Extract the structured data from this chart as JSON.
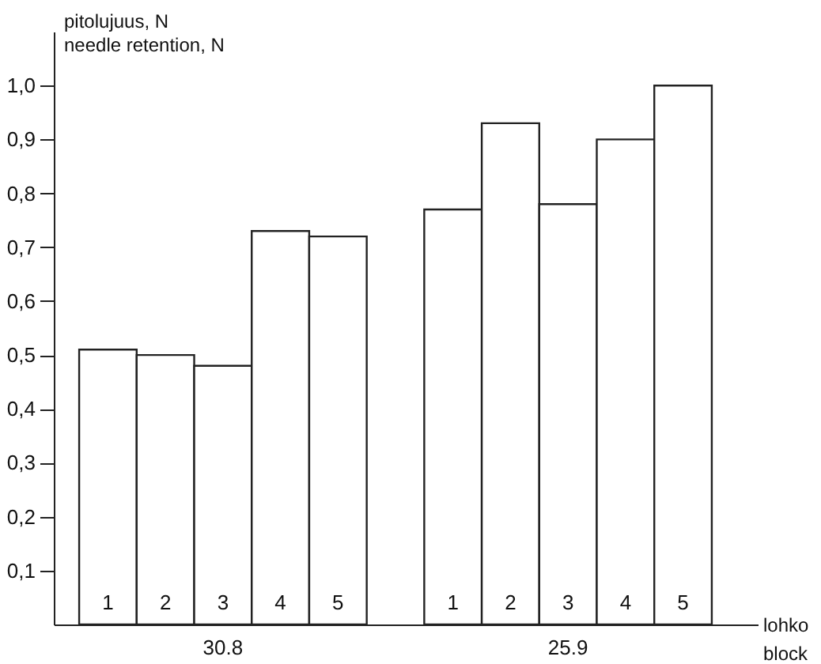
{
  "chart_data": {
    "type": "bar",
    "ylabel": "pitolujuus, N\nneedle retention, N",
    "xlabel": "lohko\nblock",
    "categories": [
      "1",
      "2",
      "3",
      "4",
      "5",
      null,
      "1",
      "2",
      "3",
      "4",
      "5"
    ],
    "series": [
      {
        "name": "30.8",
        "color": "#ffffff",
        "values": [
          0.51,
          0.5,
          0.48,
          0.73,
          0.72,
          null,
          null,
          null,
          null,
          null,
          null
        ]
      },
      {
        "name": "25.9",
        "color": "#ffffff",
        "values": [
          null,
          null,
          null,
          null,
          null,
          null,
          0.77,
          0.93,
          0.78,
          0.9,
          1.0
        ]
      }
    ],
    "ylim": [
      0,
      1.1
    ],
    "yticks": [
      {
        "value": 0.1,
        "label": "0,1"
      },
      {
        "value": 0.2,
        "label": "0,2"
      },
      {
        "value": 0.3,
        "label": "0,3"
      },
      {
        "value": 0.4,
        "label": "0,4"
      },
      {
        "value": 0.5,
        "label": "0,5"
      },
      {
        "value": 0.6,
        "label": "0,6"
      },
      {
        "value": 0.7,
        "label": "0,7"
      },
      {
        "value": 0.8,
        "label": "0,8"
      },
      {
        "value": 0.9,
        "label": "0,9"
      },
      {
        "value": 1.0,
        "label": "1,0"
      }
    ]
  }
}
